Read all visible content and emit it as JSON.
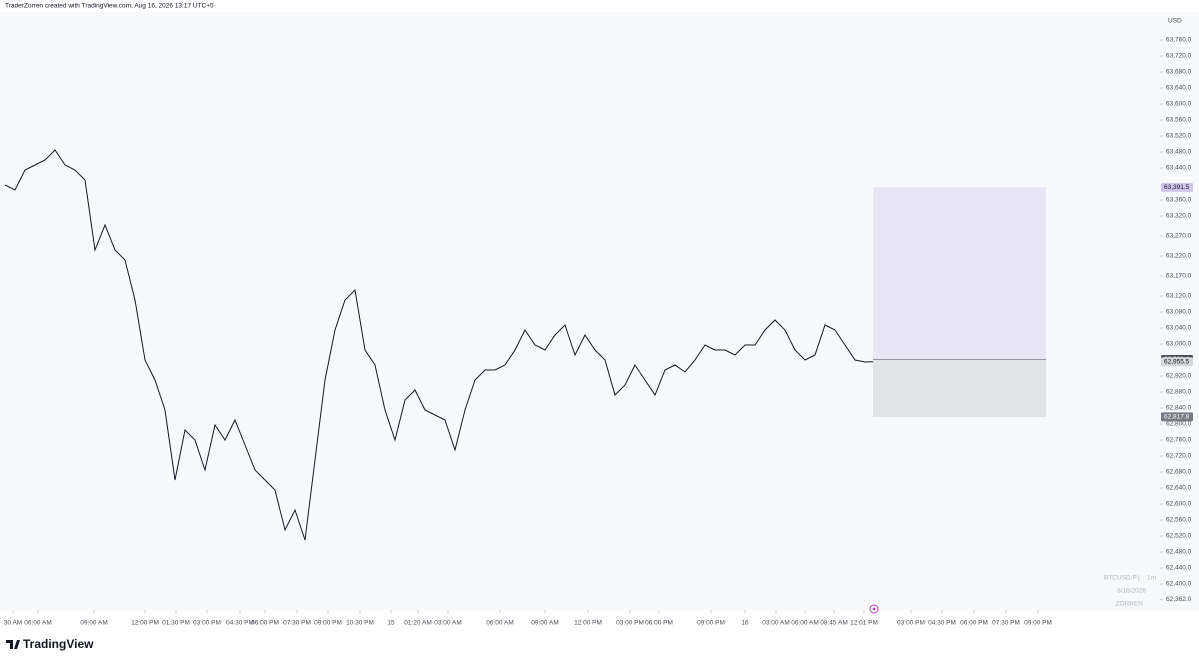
{
  "header": {
    "text": "TraderZorren created with TradingView.com, Aug 16, 2026 13:17 UTC+5"
  },
  "chart_data": {
    "type": "line",
    "currency": "USD",
    "series": [
      {
        "name": "BTCUSD.P",
        "color": "#131722",
        "x": [
          5,
          15,
          25,
          35,
          45,
          55,
          65,
          75,
          85,
          95,
          105,
          115,
          125,
          135,
          145,
          155,
          165,
          175,
          185,
          195,
          205,
          215,
          225,
          235,
          245,
          255,
          265,
          275,
          285,
          295,
          305,
          315,
          325,
          335,
          345,
          355,
          365,
          375,
          385,
          395,
          405,
          415,
          425,
          435,
          445,
          455,
          465,
          475,
          485,
          495,
          505,
          515,
          525,
          535,
          545,
          555,
          565,
          575,
          585,
          595,
          605,
          615,
          625,
          635,
          645,
          655,
          665,
          675,
          685,
          695,
          705,
          715,
          725,
          735,
          745,
          755,
          765,
          775,
          785,
          795,
          805,
          815,
          825,
          835,
          845,
          855,
          865,
          873
        ],
        "values": [
          63397.5,
          63385,
          63435,
          63447.5,
          63460,
          63485,
          63447.5,
          63435,
          63410,
          63235,
          63297.5,
          63235,
          63210,
          63110,
          62960,
          62910,
          62835,
          62660,
          62785,
          62760,
          62685,
          62797.5,
          62760,
          62810,
          62747.5,
          62685,
          62660,
          62635,
          62535,
          62585,
          62510,
          62710,
          62910,
          63035,
          63110,
          63135,
          62985,
          62947.5,
          62835,
          62760,
          62860,
          62885,
          62835,
          62822.5,
          62810,
          62735,
          62835,
          62910,
          62935,
          62935,
          62947.5,
          62985,
          63035,
          62997.5,
          62985,
          63022.5,
          63047.5,
          62972.5,
          63022.5,
          62985,
          62960,
          62872.5,
          62897.5,
          62947.5,
          62910,
          62872.5,
          62935,
          62947.5,
          62930,
          62960,
          62997.5,
          62985,
          62985,
          62972.5,
          62997.5,
          62997.5,
          63035,
          63060,
          63035,
          62985,
          62960,
          62972.5,
          63047.5,
          63035,
          62997.5,
          62960,
          62955,
          62955.5
        ]
      }
    ],
    "position": {
      "x": [
        873,
        1046
      ],
      "entry": 62961.4,
      "target": 63391.5,
      "stop": 62817.8,
      "target_color": "#e8e6f6",
      "stop_color": "#e2e3e5",
      "entry_color": "#9598a1"
    },
    "price_labels": [
      {
        "value": 63391.5,
        "label": "63,391.5",
        "color": "#d1c4e9",
        "text_color": "#131722"
      },
      {
        "value": 62961.4,
        "label": "62,961.4",
        "color": "#4a4d57",
        "text_color": "#ffffff"
      },
      {
        "value": 62955.5,
        "label": "62,955.5",
        "color": "#d6d7db",
        "text_color": "#131722"
      },
      {
        "value": 62817.8,
        "label": "62,817.8",
        "color": "#787b86",
        "text_color": "#ffffff"
      }
    ],
    "xlim": [
      0,
      1160
    ],
    "ylim": [
      62335,
      63830
    ],
    "grid": false,
    "xticks": [
      {
        "value": 13,
        "label": "30 AM"
      },
      {
        "value": 38,
        "label": "06:00 AM"
      },
      {
        "value": 94,
        "label": "09:00 AM"
      },
      {
        "value": 145,
        "label": "12:00 PM"
      },
      {
        "value": 176,
        "label": "01:30 PM"
      },
      {
        "value": 207,
        "label": "03:00 PM"
      },
      {
        "value": 240,
        "label": "04:30 PM"
      },
      {
        "value": 265,
        "label": "06:00 PM"
      },
      {
        "value": 297,
        "label": "07:30 PM"
      },
      {
        "value": 328,
        "label": "09:00 PM"
      },
      {
        "value": 360,
        "label": "10:30 PM"
      },
      {
        "value": 391,
        "label": "15"
      },
      {
        "value": 418,
        "label": "01:20 AM"
      },
      {
        "value": 448,
        "label": "03:00 AM"
      },
      {
        "value": 500,
        "label": "06:00 AM"
      },
      {
        "value": 545,
        "label": "09:00 AM"
      },
      {
        "value": 588,
        "label": "12:00 PM"
      },
      {
        "value": 630,
        "label": "03:00 PM"
      },
      {
        "value": 659,
        "label": "06:00 PM"
      },
      {
        "value": 711,
        "label": "09:00 PM"
      },
      {
        "value": 745,
        "label": "16"
      },
      {
        "value": 776,
        "label": "03:00 AM"
      },
      {
        "value": 805,
        "label": "06:00 AM"
      },
      {
        "value": 834,
        "label": "08:45 AM"
      },
      {
        "value": 864,
        "label": "12:01 PM"
      },
      {
        "value": 911,
        "label": "03:00 PM"
      },
      {
        "value": 942,
        "label": "04:30 PM"
      },
      {
        "value": 974,
        "label": "06:00 PM"
      },
      {
        "value": 1006,
        "label": "07:30 PM"
      },
      {
        "value": 1038,
        "label": "09:00 PM"
      }
    ],
    "yticks": [
      {
        "value": 63760,
        "label": "63,760.0"
      },
      {
        "value": 63720,
        "label": "63,720.0"
      },
      {
        "value": 63680,
        "label": "63,680.0"
      },
      {
        "value": 63640,
        "label": "63,640.0"
      },
      {
        "value": 63600,
        "label": "63,600.0"
      },
      {
        "value": 63560,
        "label": "63,560.0"
      },
      {
        "value": 63520,
        "label": "63,520.0"
      },
      {
        "value": 63480,
        "label": "63,480.0"
      },
      {
        "value": 63440,
        "label": "63,440.0"
      },
      {
        "value": 63360,
        "label": "63,360.0"
      },
      {
        "value": 63320,
        "label": "63,320.0"
      },
      {
        "value": 63270,
        "label": "63,270.0"
      },
      {
        "value": 63220,
        "label": "63,220.0"
      },
      {
        "value": 63170,
        "label": "63,170.0"
      },
      {
        "value": 63120,
        "label": "63,120.0"
      },
      {
        "value": 63080,
        "label": "63,080.0"
      },
      {
        "value": 63040,
        "label": "63,040.0"
      },
      {
        "value": 63000,
        "label": "63,000.0"
      },
      {
        "value": 62920,
        "label": "62,920.0"
      },
      {
        "value": 62880,
        "label": "62,880.0"
      },
      {
        "value": 62840,
        "label": "62,840.0"
      },
      {
        "value": 62800,
        "label": "62,800.0"
      },
      {
        "value": 62760,
        "label": "62,760.0"
      },
      {
        "value": 62720,
        "label": "62,720.0"
      },
      {
        "value": 62680,
        "label": "62,680.0"
      },
      {
        "value": 62640,
        "label": "62,640.0"
      },
      {
        "value": 62600,
        "label": "62,600.0"
      },
      {
        "value": 62560,
        "label": "62,560.0"
      },
      {
        "value": 62520,
        "label": "62,520.0"
      },
      {
        "value": 62480,
        "label": "62,480.0"
      },
      {
        "value": 62440,
        "label": "62,440.0"
      },
      {
        "value": 62400,
        "label": "62,400.0"
      },
      {
        "value": 62362,
        "label": "62,362.0"
      }
    ],
    "watermark": {
      "symbol": "BTCUSD.P",
      "interval": "1m",
      "date": "8/16/2026",
      "author": "ZORREN"
    }
  },
  "footer": {
    "brand": "TradingView"
  }
}
